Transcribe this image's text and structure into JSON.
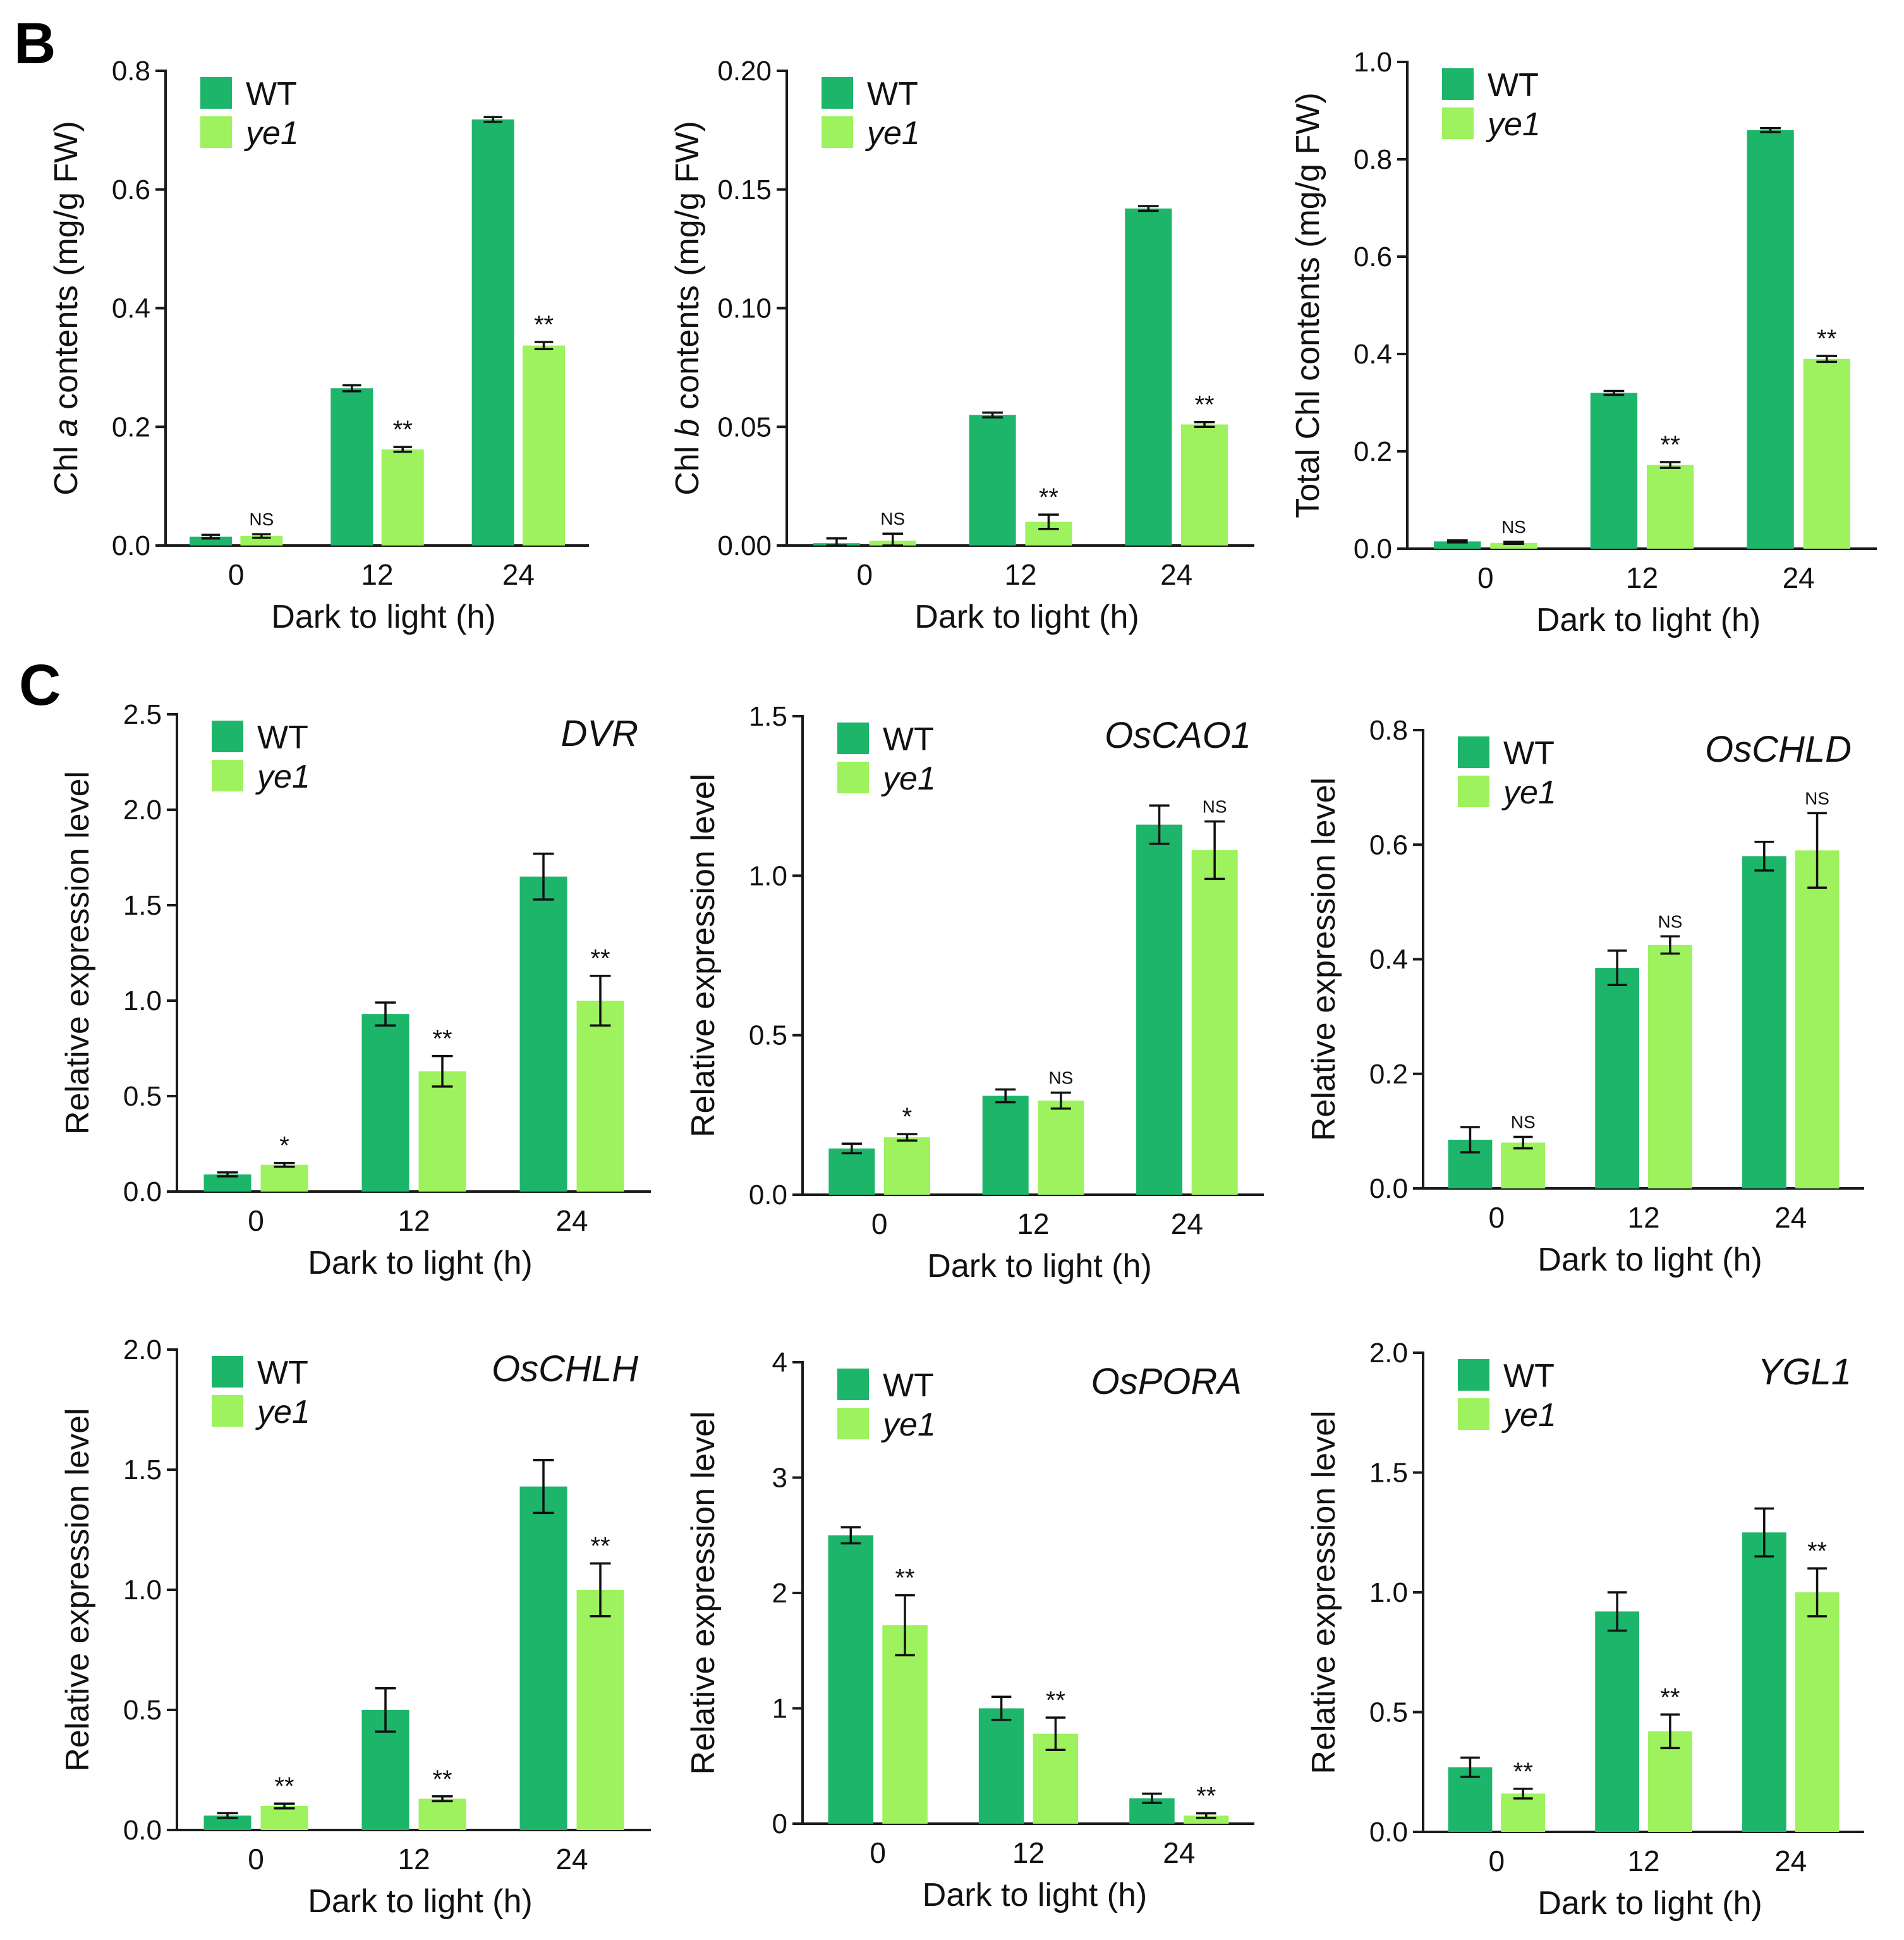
{
  "panels": {
    "b": "B",
    "c": "C"
  },
  "legend": {
    "wt": "WT",
    "ye1": "ye1"
  },
  "colors": {
    "wt": "#1db56a",
    "ye1": "#9ef25e",
    "axis": "#1a1a1a"
  },
  "chart_data": [
    {
      "type": "bar",
      "title": "",
      "ylabel_parts": [
        {
          "text": "Chl ",
          "italic": false
        },
        {
          "text": "a",
          "italic": true
        },
        {
          "text": " contents (mg/g FW)",
          "italic": false
        }
      ],
      "xlabel": "Dark to light (h)",
      "categories": [
        "0",
        "12",
        "24"
      ],
      "ylim": [
        0,
        0.8
      ],
      "yticks": [
        "0.0",
        "0.2",
        "0.4",
        "0.6",
        "0.8"
      ],
      "series": [
        {
          "name": "WT",
          "values": [
            0.015,
            0.265,
            0.718
          ],
          "errors": [
            0.003,
            0.005,
            0.004
          ]
        },
        {
          "name": "ye1",
          "values": [
            0.016,
            0.162,
            0.337
          ],
          "errors": [
            0.003,
            0.004,
            0.006
          ]
        }
      ],
      "significance": [
        "NS",
        "**",
        "**"
      ]
    },
    {
      "type": "bar",
      "title": "",
      "ylabel_parts": [
        {
          "text": "Chl ",
          "italic": false
        },
        {
          "text": "b",
          "italic": true
        },
        {
          "text": " contents (mg/g FW)",
          "italic": false
        }
      ],
      "xlabel": "Dark to light (h)",
      "categories": [
        "0",
        "12",
        "24"
      ],
      "ylim": [
        0,
        0.2
      ],
      "yticks": [
        "0.00",
        "0.05",
        "0.10",
        "0.15",
        "0.20"
      ],
      "series": [
        {
          "name": "WT",
          "values": [
            0.001,
            0.055,
            0.142
          ],
          "errors": [
            0.002,
            0.001,
            0.001
          ]
        },
        {
          "name": "ye1",
          "values": [
            0.002,
            0.01,
            0.051
          ],
          "errors": [
            0.003,
            0.003,
            0.001
          ]
        }
      ],
      "significance": [
        "NS",
        "**",
        "**"
      ]
    },
    {
      "type": "bar",
      "title": "",
      "ylabel_parts": [
        {
          "text": "Total Chl contents (mg/g  FW)",
          "italic": false
        }
      ],
      "xlabel": "Dark to light (h)",
      "categories": [
        "0",
        "12",
        "24"
      ],
      "ylim": [
        0,
        1.0
      ],
      "yticks": [
        "0.0",
        "0.2",
        "0.4",
        "0.6",
        "0.8",
        "1.0"
      ],
      "series": [
        {
          "name": "WT",
          "values": [
            0.015,
            0.32,
            0.86
          ],
          "errors": [
            0.002,
            0.004,
            0.004
          ]
        },
        {
          "name": "ye1",
          "values": [
            0.012,
            0.172,
            0.39
          ],
          "errors": [
            0.002,
            0.006,
            0.006
          ]
        }
      ],
      "significance": [
        "NS",
        "**",
        "**"
      ]
    },
    {
      "type": "bar",
      "title": "DVR",
      "ylabel_parts": [
        {
          "text": "Relative expression level",
          "italic": false
        }
      ],
      "xlabel": "Dark to light (h)",
      "categories": [
        "0",
        "12",
        "24"
      ],
      "ylim": [
        0,
        2.5
      ],
      "yticks": [
        "0.0",
        "0.5",
        "1.0",
        "1.5",
        "2.0",
        "2.5"
      ],
      "series": [
        {
          "name": "WT",
          "values": [
            0.09,
            0.93,
            1.65
          ],
          "errors": [
            0.01,
            0.06,
            0.12
          ]
        },
        {
          "name": "ye1",
          "values": [
            0.14,
            0.63,
            1.0
          ],
          "errors": [
            0.01,
            0.08,
            0.13
          ]
        }
      ],
      "significance": [
        "*",
        "**",
        "**"
      ]
    },
    {
      "type": "bar",
      "title": "OsCAO1",
      "ylabel_parts": [
        {
          "text": "Relative expression level",
          "italic": false
        }
      ],
      "xlabel": "Dark to light (h)",
      "categories": [
        "0",
        "12",
        "24"
      ],
      "ylim": [
        0,
        1.5
      ],
      "yticks": [
        "0.0",
        "0.5",
        "1.0",
        "1.5"
      ],
      "series": [
        {
          "name": "WT",
          "values": [
            0.145,
            0.31,
            1.16
          ],
          "errors": [
            0.015,
            0.02,
            0.06
          ]
        },
        {
          "name": "ye1",
          "values": [
            0.18,
            0.295,
            1.08
          ],
          "errors": [
            0.01,
            0.025,
            0.09
          ]
        }
      ],
      "significance": [
        "*",
        "NS",
        "NS"
      ]
    },
    {
      "type": "bar",
      "title": "OsCHLD",
      "ylabel_parts": [
        {
          "text": "Relative expression level",
          "italic": false
        }
      ],
      "xlabel": "Dark to light (h)",
      "categories": [
        "0",
        "12",
        "24"
      ],
      "ylim": [
        0,
        0.8
      ],
      "yticks": [
        "0.0",
        "0.2",
        "0.4",
        "0.6",
        "0.8"
      ],
      "series": [
        {
          "name": "WT",
          "values": [
            0.085,
            0.385,
            0.58
          ],
          "errors": [
            0.022,
            0.03,
            0.025
          ]
        },
        {
          "name": "ye1",
          "values": [
            0.08,
            0.425,
            0.59
          ],
          "errors": [
            0.01,
            0.015,
            0.065
          ]
        }
      ],
      "significance": [
        "NS",
        "NS",
        "NS"
      ]
    },
    {
      "type": "bar",
      "title": "OsCHLH",
      "ylabel_parts": [
        {
          "text": "Relative expression level",
          "italic": false
        }
      ],
      "xlabel": "Dark to light  (h)",
      "categories": [
        "0",
        "12",
        "24"
      ],
      "ylim": [
        0,
        2.0
      ],
      "yticks": [
        "0.0",
        "0.5",
        "1.0",
        "1.5",
        "2.0"
      ],
      "series": [
        {
          "name": "WT",
          "values": [
            0.06,
            0.5,
            1.43
          ],
          "errors": [
            0.01,
            0.09,
            0.11
          ]
        },
        {
          "name": "ye1",
          "values": [
            0.1,
            0.13,
            1.0
          ],
          "errors": [
            0.01,
            0.01,
            0.11
          ]
        }
      ],
      "significance": [
        "**",
        "**",
        "**"
      ]
    },
    {
      "type": "bar",
      "title": "OsPORA",
      "ylabel_parts": [
        {
          "text": "Relative expression level",
          "italic": false
        }
      ],
      "xlabel": "Dark to light (h)",
      "categories": [
        "0",
        "12",
        "24"
      ],
      "ylim": [
        0,
        4
      ],
      "yticks": [
        "0",
        "1",
        "2",
        "3",
        "4"
      ],
      "series": [
        {
          "name": "WT",
          "values": [
            2.5,
            1.0,
            0.22
          ],
          "errors": [
            0.07,
            0.1,
            0.04
          ]
        },
        {
          "name": "ye1",
          "values": [
            1.72,
            0.78,
            0.07
          ],
          "errors": [
            0.26,
            0.14,
            0.02
          ]
        }
      ],
      "significance": [
        "**",
        "**",
        "**"
      ]
    },
    {
      "type": "bar",
      "title": "YGL1",
      "ylabel_parts": [
        {
          "text": "Relative expression level",
          "italic": false
        }
      ],
      "xlabel": "Dark to light  (h)",
      "categories": [
        "0",
        "12",
        "24"
      ],
      "ylim": [
        0,
        2.0
      ],
      "yticks": [
        "0.0",
        "0.5",
        "1.0",
        "1.5",
        "2.0"
      ],
      "series": [
        {
          "name": "WT",
          "values": [
            0.27,
            0.92,
            1.25
          ],
          "errors": [
            0.04,
            0.08,
            0.1
          ]
        },
        {
          "name": "ye1",
          "values": [
            0.16,
            0.42,
            1.0
          ],
          "errors": [
            0.02,
            0.07,
            0.1
          ]
        }
      ],
      "significance": [
        "**",
        "**",
        "**"
      ]
    }
  ]
}
